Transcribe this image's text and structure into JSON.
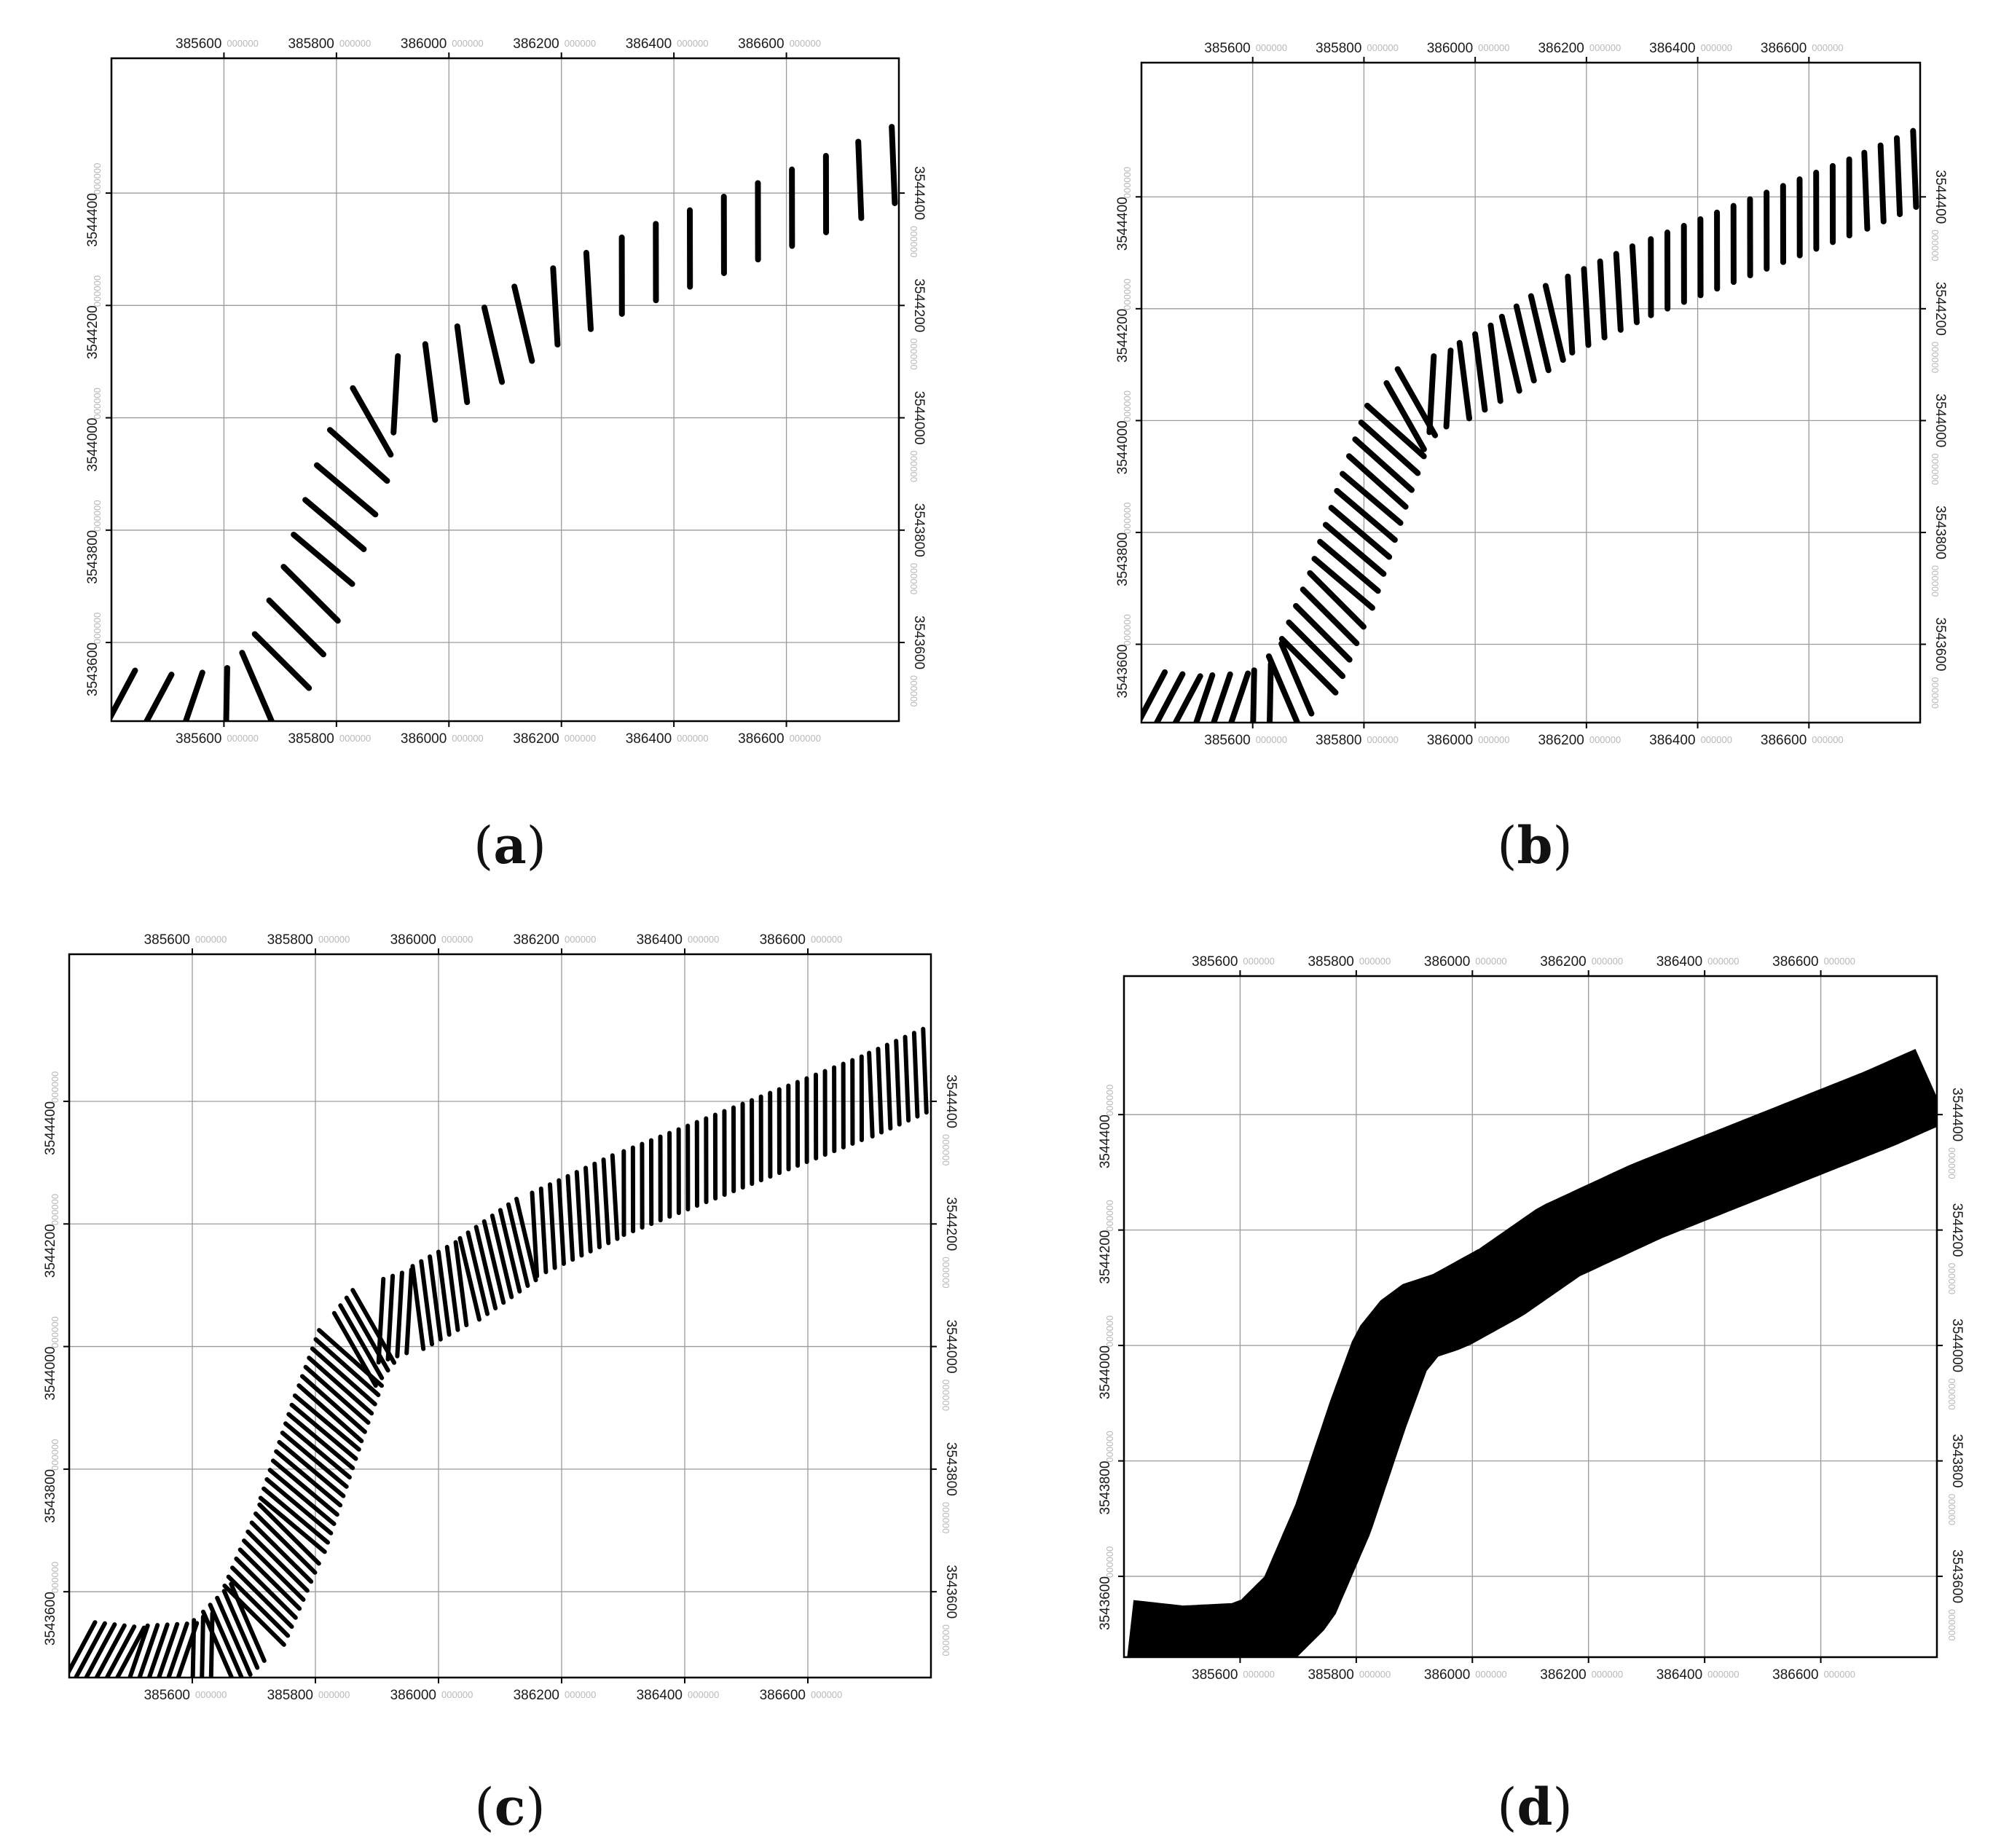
{
  "chart_data": [
    {
      "type": "line",
      "panel_label": "a",
      "x_ticks": [
        "385600",
        "385800",
        "386000",
        "386200",
        "386400",
        "386600"
      ],
      "y_ticks": [
        "3543600",
        "3543800",
        "3544000",
        "3544200",
        "3544400"
      ],
      "tick_suffix": "000000",
      "xlim": [
        385400,
        386800
      ],
      "ylim": [
        3543460,
        3544640
      ],
      "grid": true,
      "center_line": [
        [
          385410,
          3543490
        ],
        [
          385500,
          3543480
        ],
        [
          385600,
          3543485
        ],
        [
          385640,
          3543500
        ],
        [
          385700,
          3543560
        ],
        [
          385760,
          3543700
        ],
        [
          385820,
          3543880
        ],
        [
          385860,
          3543990
        ],
        [
          385900,
          3544040
        ],
        [
          385960,
          3544060
        ],
        [
          386050,
          3544110
        ],
        [
          386150,
          3544180
        ],
        [
          386300,
          3544250
        ],
        [
          386500,
          3544330
        ],
        [
          386700,
          3544410
        ],
        [
          386790,
          3544450
        ]
      ],
      "half_width": 68,
      "transect_count": 29
    },
    {
      "type": "line",
      "panel_label": "b",
      "x_ticks": [
        "385600",
        "385800",
        "386000",
        "386200",
        "386400",
        "386600"
      ],
      "y_ticks": [
        "3543600",
        "3543800",
        "3544000",
        "3544200",
        "3544400"
      ],
      "tick_suffix": "000000",
      "xlim": [
        385400,
        386800
      ],
      "ylim": [
        3543460,
        3544640
      ],
      "grid": true,
      "center_line": [
        [
          385410,
          3543490
        ],
        [
          385500,
          3543480
        ],
        [
          385600,
          3543485
        ],
        [
          385640,
          3543500
        ],
        [
          385700,
          3543560
        ],
        [
          385760,
          3543700
        ],
        [
          385820,
          3543880
        ],
        [
          385860,
          3543990
        ],
        [
          385900,
          3544040
        ],
        [
          385960,
          3544060
        ],
        [
          386050,
          3544110
        ],
        [
          386150,
          3544180
        ],
        [
          386300,
          3544250
        ],
        [
          386500,
          3544330
        ],
        [
          386700,
          3544410
        ],
        [
          386790,
          3544450
        ]
      ],
      "half_width": 68,
      "transect_count": 58
    },
    {
      "type": "line",
      "panel_label": "c",
      "x_ticks": [
        "385600",
        "385800",
        "386000",
        "386200",
        "386400",
        "386600"
      ],
      "y_ticks": [
        "3543600",
        "3543800",
        "3544000",
        "3544200",
        "3544400"
      ],
      "tick_suffix": "000000",
      "xlim": [
        385400,
        386800
      ],
      "ylim": [
        3543460,
        3544640
      ],
      "grid": true,
      "center_line": [
        [
          385410,
          3543490
        ],
        [
          385500,
          3543480
        ],
        [
          385600,
          3543485
        ],
        [
          385640,
          3543500
        ],
        [
          385700,
          3543560
        ],
        [
          385760,
          3543700
        ],
        [
          385820,
          3543880
        ],
        [
          385860,
          3543990
        ],
        [
          385900,
          3544040
        ],
        [
          385960,
          3544060
        ],
        [
          386050,
          3544110
        ],
        [
          386150,
          3544180
        ],
        [
          386300,
          3544250
        ],
        [
          386500,
          3544330
        ],
        [
          386700,
          3544410
        ],
        [
          386790,
          3544450
        ]
      ],
      "half_width": 68,
      "transect_count": 115
    },
    {
      "type": "area",
      "panel_label": "d",
      "x_ticks": [
        "385600",
        "385800",
        "386000",
        "386200",
        "386400",
        "386600"
      ],
      "y_ticks": [
        "3543600",
        "3543800",
        "3544000",
        "3544200",
        "3544400"
      ],
      "tick_suffix": "000000",
      "xlim": [
        385400,
        386800
      ],
      "ylim": [
        3543460,
        3544640
      ],
      "grid": true,
      "center_line": [
        [
          385410,
          3543490
        ],
        [
          385500,
          3543480
        ],
        [
          385600,
          3543485
        ],
        [
          385640,
          3543500
        ],
        [
          385700,
          3543560
        ],
        [
          385760,
          3543700
        ],
        [
          385820,
          3543880
        ],
        [
          385860,
          3543990
        ],
        [
          385900,
          3544040
        ],
        [
          385960,
          3544060
        ],
        [
          386050,
          3544110
        ],
        [
          386150,
          3544180
        ],
        [
          386300,
          3544250
        ],
        [
          386500,
          3544330
        ],
        [
          386700,
          3544410
        ],
        [
          386790,
          3544450
        ]
      ],
      "half_width": 68,
      "transect_count": 0
    }
  ]
}
